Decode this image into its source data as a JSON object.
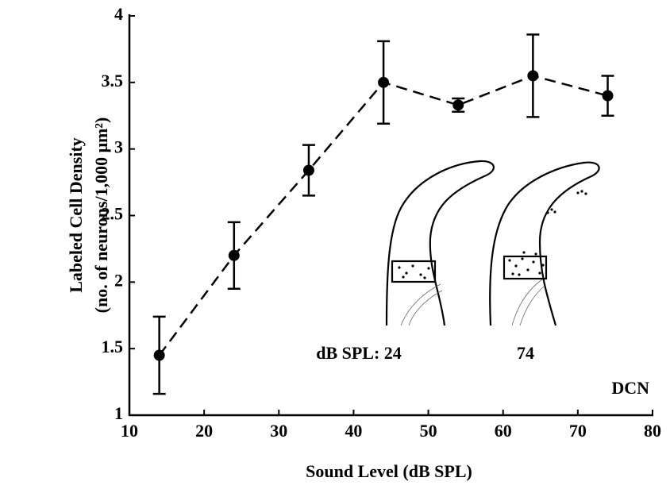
{
  "chart_data": {
    "type": "errorline",
    "x_label": "Sound Level (dB SPL)",
    "y_label": [
      "Labeled Cell Density",
      "(no. of neurons/1,000 μm²)"
    ],
    "x": [
      14,
      24,
      34,
      44,
      54,
      64,
      74
    ],
    "values": [
      1.45,
      2.2,
      2.84,
      3.5,
      3.33,
      3.55,
      3.4
    ],
    "errors": [
      0.29,
      0.25,
      0.19,
      0.31,
      0.05,
      0.31,
      0.15
    ],
    "color": "#000000",
    "line_style": "dashed",
    "xlim": [
      10,
      80
    ],
    "xticks": [
      10,
      20,
      30,
      40,
      50,
      60,
      70,
      80
    ],
    "ylim": [
      1,
      4
    ],
    "yticks": [
      1,
      1.5,
      2,
      2.5,
      3,
      3.5,
      4
    ],
    "annotations": [
      "dB SPL: 24",
      "74",
      "DCN"
    ]
  }
}
